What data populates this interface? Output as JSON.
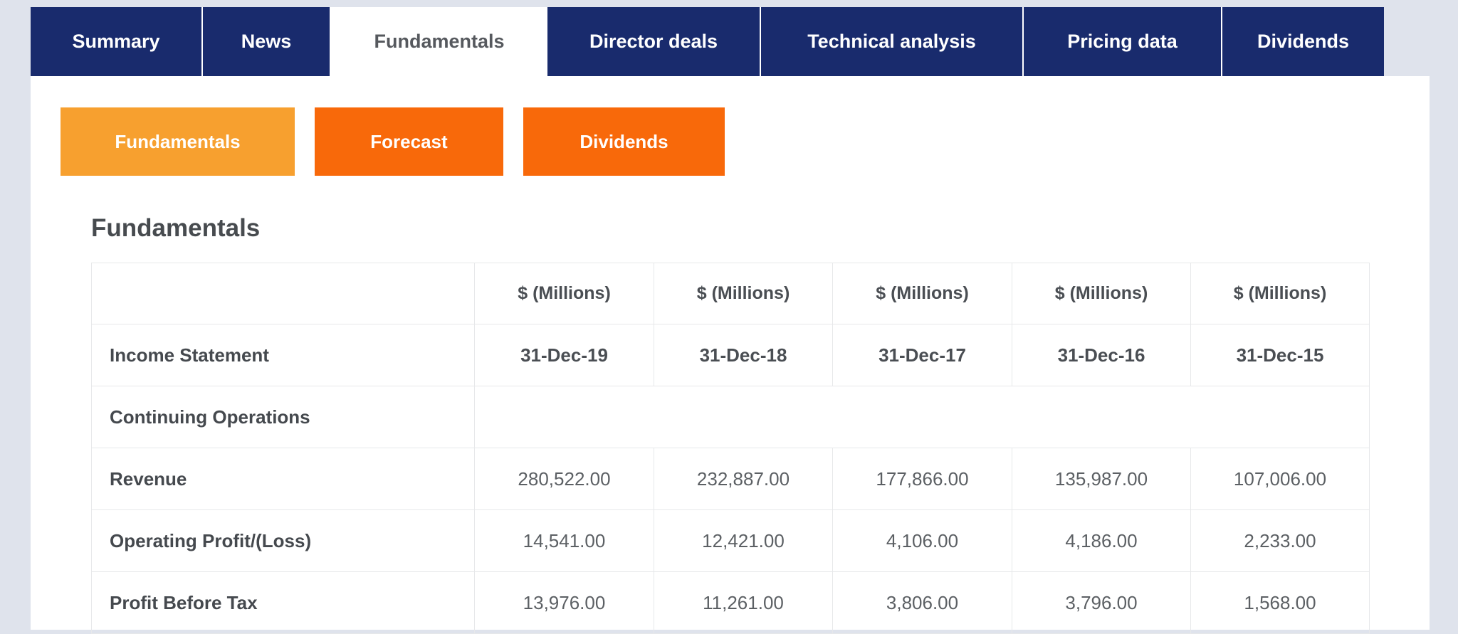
{
  "tabs": {
    "items": [
      {
        "label": "Summary",
        "active": false
      },
      {
        "label": "News",
        "active": false
      },
      {
        "label": "Fundamentals",
        "active": true
      },
      {
        "label": "Director deals",
        "active": false
      },
      {
        "label": "Technical analysis",
        "active": false
      },
      {
        "label": "Pricing data",
        "active": false
      },
      {
        "label": "Dividends",
        "active": false
      }
    ]
  },
  "subnav": {
    "buttons": [
      {
        "label": "Fundamentals",
        "active": true
      },
      {
        "label": "Forecast",
        "active": false
      },
      {
        "label": "Dividends",
        "active": false
      }
    ]
  },
  "section": {
    "title": "Fundamentals"
  },
  "fundamentals_table": {
    "unit_headers": [
      "$ (Millions)",
      "$ (Millions)",
      "$ (Millions)",
      "$ (Millions)",
      "$ (Millions)"
    ],
    "rows": [
      {
        "label": "Income Statement",
        "type": "dates",
        "values": [
          "31-Dec-19",
          "31-Dec-18",
          "31-Dec-17",
          "31-Dec-16",
          "31-Dec-15"
        ]
      },
      {
        "label": "Continuing Operations",
        "type": "merged-empty",
        "values": []
      },
      {
        "label": "Revenue",
        "type": "values",
        "values": [
          "280,522.00",
          "232,887.00",
          "177,866.00",
          "135,987.00",
          "107,006.00"
        ]
      },
      {
        "label": "Operating Profit/(Loss)",
        "type": "values",
        "values": [
          "14,541.00",
          "12,421.00",
          "4,106.00",
          "4,186.00",
          "2,233.00"
        ]
      },
      {
        "label": "Profit Before Tax",
        "type": "values",
        "values": [
          "13,976.00",
          "11,261.00",
          "3,806.00",
          "3,796.00",
          "1,568.00"
        ]
      }
    ]
  },
  "colors": {
    "navy_tab": "#192b6d",
    "active_subnav_orange": "#f7a02f",
    "subnav_orange": "#f8690a",
    "page_background": "#dfe3ec",
    "panel_background": "#ffffff",
    "table_border": "#e7e8ea"
  }
}
